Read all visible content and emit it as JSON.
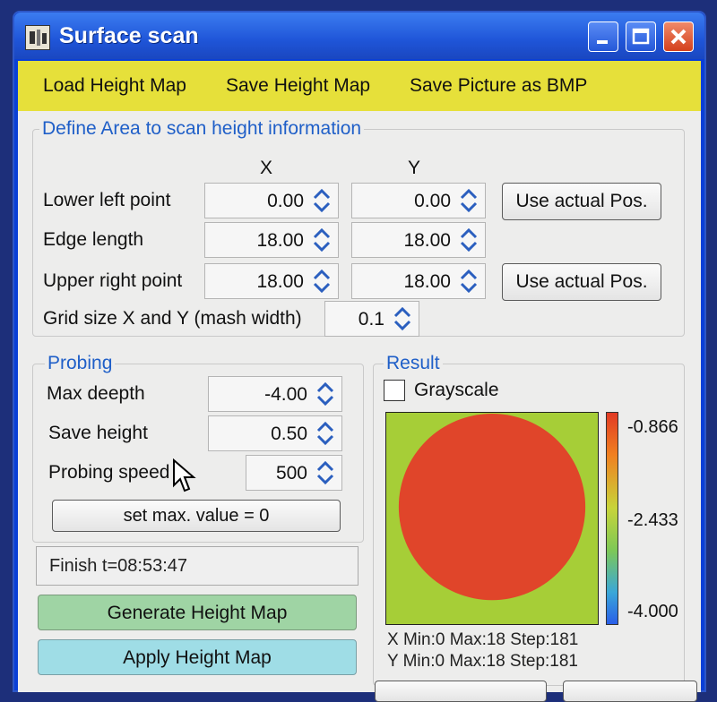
{
  "window": {
    "title": "Surface scan"
  },
  "menu": {
    "items": [
      "Load Height Map",
      "Save Height Map",
      "Save Picture as BMP"
    ]
  },
  "define_area": {
    "title": "Define Area to scan height information",
    "col_x": "X",
    "col_y": "Y",
    "lower_left": {
      "label": "Lower left point",
      "x": "0.00",
      "y": "0.00",
      "button": "Use actual Pos."
    },
    "edge_length": {
      "label": "Edge length",
      "x": "18.00",
      "y": "18.00"
    },
    "upper_right": {
      "label": "Upper right point",
      "x": "18.00",
      "y": "18.00",
      "button": "Use actual Pos."
    },
    "grid": {
      "label": "Grid size X and Y (mash width)",
      "value": "0.1"
    }
  },
  "probing": {
    "title": "Probing",
    "max_depth": {
      "label": "Max deepth",
      "value": "-4.00"
    },
    "save_height": {
      "label": "Save height",
      "value": "0.50"
    },
    "probing_speed": {
      "label": "Probing speed",
      "value": "500"
    },
    "set_max_button": "set max. value = 0"
  },
  "status": {
    "text": "Finish t=08:53:47"
  },
  "actions": {
    "generate": "Generate Height Map",
    "apply": "Apply Height Map"
  },
  "result": {
    "title": "Result",
    "grayscale_label": "Grayscale",
    "grayscale_checked": false,
    "scale_max": "-0.866",
    "scale_mid": "-2.433",
    "scale_min": "-4.000",
    "x_info": "X Min:0 Max:18 Step:181",
    "y_info": "Y Min:0 Max:18 Step:181"
  },
  "colors": {
    "menubar": "#e6e03a",
    "group_title": "#1f5fc8",
    "generate_bg": "#9fd4a4",
    "apply_bg": "#9fdde6",
    "heatmap_bg": "#a6ce37",
    "heatmap_circle": "#e0452a"
  }
}
